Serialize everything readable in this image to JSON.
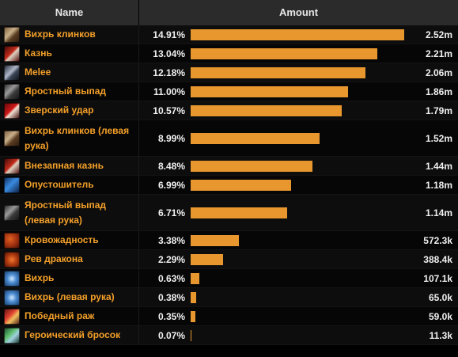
{
  "header": {
    "name_label": "Name",
    "amount_label": "Amount"
  },
  "colors": {
    "bar": "#e7972e",
    "name_text": "#f5a029",
    "header_bg": "#2b2b2b"
  },
  "rows": [
    {
      "name": "Вихрь клинков",
      "percent": "14.91%",
      "amount": "2.52m",
      "fraction": 1.0,
      "icon": "blade-flurry-icon",
      "icon_class": "ic-blade"
    },
    {
      "name": "Казнь",
      "percent": "13.04%",
      "amount": "2.21m",
      "fraction": 0.8746,
      "icon": "execute-icon",
      "icon_class": "ic-exec"
    },
    {
      "name": "Melee",
      "percent": "12.18%",
      "amount": "2.06m",
      "fraction": 0.8169,
      "icon": "sword-icon",
      "icon_class": "ic-melee"
    },
    {
      "name": "Яростный выпад",
      "percent": "11.00%",
      "amount": "1.86m",
      "fraction": 0.7378,
      "icon": "raging-blow-icon",
      "icon_class": "ic-lunge"
    },
    {
      "name": "Зверский удар",
      "percent": "10.57%",
      "amount": "1.79m",
      "fraction": 0.7089,
      "icon": "bloodthirst-strike-icon",
      "icon_class": "ic-beast"
    },
    {
      "name": "Вихрь клинков (левая рука)",
      "percent": "8.99%",
      "amount": "1.52m",
      "fraction": 0.603,
      "icon": "blade-flurry-icon",
      "icon_class": "ic-blade",
      "tall": true
    },
    {
      "name": "Внезапная казнь",
      "percent": "8.48%",
      "amount": "1.44m",
      "fraction": 0.5687,
      "icon": "execute-icon",
      "icon_class": "ic-exec"
    },
    {
      "name": "Опустошитель",
      "percent": "6.99%",
      "amount": "1.18m",
      "fraction": 0.4688,
      "icon": "ravager-icon",
      "icon_class": "ic-ravager"
    },
    {
      "name": "Яростный выпад (левая рука)",
      "percent": "6.71%",
      "amount": "1.14m",
      "fraction": 0.45,
      "icon": "raging-blow-icon",
      "icon_class": "ic-lunge",
      "tall": true
    },
    {
      "name": "Кровожадность",
      "percent": "3.38%",
      "amount": "572.3k",
      "fraction": 0.2267,
      "icon": "bloodthirst-icon",
      "icon_class": "ic-blood"
    },
    {
      "name": "Рев дракона",
      "percent": "2.29%",
      "amount": "388.4k",
      "fraction": 0.1536,
      "icon": "dragon-roar-icon",
      "icon_class": "ic-dragon"
    },
    {
      "name": "Вихрь",
      "percent": "0.63%",
      "amount": "107.1k",
      "fraction": 0.0423,
      "icon": "whirlwind-icon",
      "icon_class": "ic-whirl"
    },
    {
      "name": "Вихрь (левая рука)",
      "percent": "0.38%",
      "amount": "65.0k",
      "fraction": 0.0255,
      "icon": "whirlwind-icon",
      "icon_class": "ic-whirl"
    },
    {
      "name": "Победный раж",
      "percent": "0.35%",
      "amount": "59.0k",
      "fraction": 0.0235,
      "icon": "victory-rush-icon",
      "icon_class": "ic-victory"
    },
    {
      "name": "Героический бросок",
      "percent": "0.07%",
      "amount": "11.3k",
      "fraction": 0.0047,
      "icon": "heroic-throw-icon",
      "icon_class": "ic-throw"
    }
  ]
}
